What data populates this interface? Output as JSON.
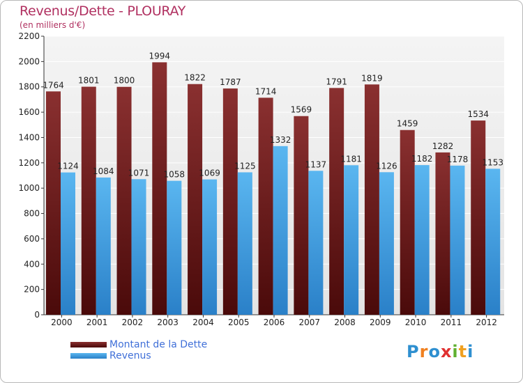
{
  "chart_data": {
    "type": "bar",
    "title": "Revenus/Dette - PLOURAY",
    "subtitle": "(en milliers d'€)",
    "categories": [
      "2000",
      "2001",
      "2002",
      "2003",
      "2004",
      "2005",
      "2006",
      "2007",
      "2008",
      "2009",
      "2010",
      "2011",
      "2012"
    ],
    "series": [
      {
        "name": "Montant de la Dette",
        "color": "#7a2424",
        "values": [
          1764,
          1801,
          1800,
          1994,
          1822,
          1787,
          1714,
          1569,
          1791,
          1819,
          1459,
          1282,
          1534
        ]
      },
      {
        "name": "Revenus",
        "color": "#4aa3e0",
        "values": [
          1124,
          1084,
          1071,
          1058,
          1069,
          1125,
          1332,
          1137,
          1181,
          1126,
          1182,
          1178,
          1153
        ]
      }
    ],
    "ylim": [
      0,
      2200
    ],
    "yticks": [
      0,
      200,
      400,
      600,
      800,
      1000,
      1200,
      1400,
      1600,
      1800,
      2000,
      2200
    ],
    "grid": true,
    "legend_position": "bottom-left"
  },
  "logo": {
    "letters": [
      "P",
      "r",
      "o",
      "x",
      "i",
      "t",
      "i"
    ],
    "colors": [
      "#2e8fd0",
      "#f08020",
      "#2e8fd0",
      "#e03030",
      "#60b030",
      "#f0a020",
      "#2e8fd0"
    ]
  }
}
